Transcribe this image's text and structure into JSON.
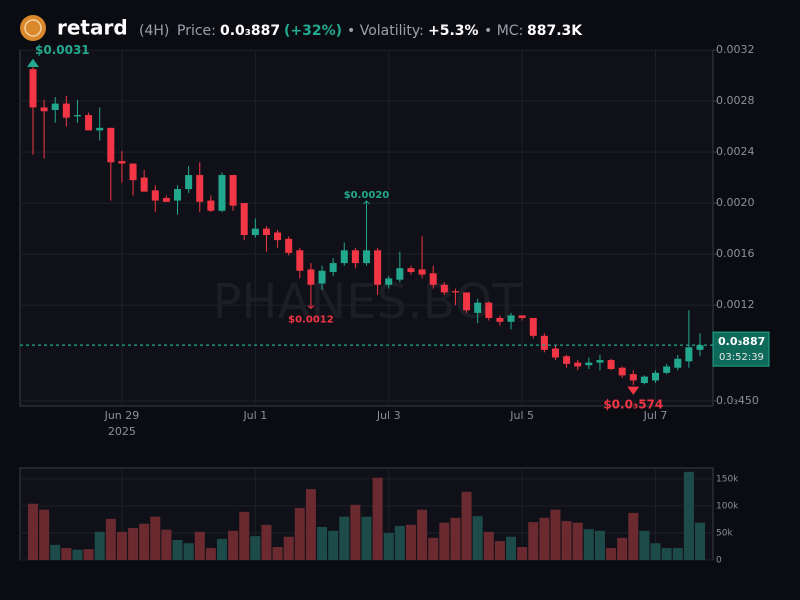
{
  "header": {
    "name": "retard",
    "interval": "(4H)",
    "price_label": "Price:",
    "price": "0.0₃887",
    "change": "(+32%)",
    "volatility_label": "• Volatility:",
    "volatility": "+5.3%",
    "mc_label": "• MC:",
    "mc": "887.3K"
  },
  "chart_data": {
    "type": "candlestick",
    "categories": [
      null,
      null,
      null,
      null,
      null,
      null,
      null,
      null,
      "Jun 29",
      null,
      null,
      null,
      null,
      null,
      null,
      null,
      null,
      null,
      null,
      null,
      "Jul 1",
      null,
      null,
      null,
      null,
      null,
      null,
      null,
      null,
      null,
      null,
      null,
      "Jul 3",
      null,
      null,
      null,
      null,
      null,
      null,
      null,
      null,
      null,
      null,
      null,
      "Jul 5",
      null,
      null,
      null,
      null,
      null,
      null,
      null,
      null,
      null,
      null,
      null,
      "Jul 7",
      null,
      null,
      null,
      null
    ],
    "x_year_label": "2025",
    "open": [
      0.00305,
      0.00275,
      0.00273,
      0.00278,
      0.00268,
      0.00269,
      0.00257,
      0.00259,
      0.00233,
      0.00231,
      0.0022,
      0.0021,
      0.00204,
      0.00202,
      0.00211,
      0.00222,
      0.00202,
      0.00194,
      0.00222,
      0.002,
      0.00175,
      0.0018,
      0.00177,
      0.00172,
      0.00163,
      0.00148,
      0.00137,
      0.00146,
      0.00153,
      0.00163,
      0.00153,
      0.00163,
      0.00136,
      0.0014,
      0.00149,
      0.00148,
      0.00145,
      0.00136,
      0.00131,
      0.0013,
      0.00114,
      0.00122,
      0.0011,
      0.00107,
      0.00112,
      0.0011,
      0.00096,
      0.00086,
      0.0008,
      0.00075,
      0.00073,
      0.00075,
      0.00077,
      0.00071,
      0.00066,
      0.00059,
      0.00061,
      0.00067,
      0.00071,
      0.00076,
      0.00085
    ],
    "high": [
      0.00311,
      0.00281,
      0.00283,
      0.00284,
      0.00281,
      0.00271,
      0.00275,
      0.00259,
      0.00241,
      0.00231,
      0.00226,
      0.00214,
      0.00206,
      0.00214,
      0.00229,
      0.00232,
      0.00206,
      0.00224,
      0.00222,
      0.002,
      0.00188,
      0.00182,
      0.00179,
      0.00174,
      0.00165,
      0.00153,
      0.00151,
      0.00157,
      0.00169,
      0.00165,
      0.00197,
      0.00165,
      0.00143,
      0.00162,
      0.00151,
      0.00174,
      0.00151,
      0.00138,
      0.00133,
      0.0013,
      0.00125,
      0.00123,
      0.00112,
      0.00114,
      0.00112,
      0.0011,
      0.00098,
      0.00089,
      0.00081,
      0.00077,
      0.00079,
      0.00081,
      0.00078,
      0.00072,
      0.00069,
      0.00065,
      0.00069,
      0.00074,
      0.00081,
      0.00116,
      0.00098
    ],
    "low": [
      0.00238,
      0.00235,
      0.00263,
      0.0026,
      0.00263,
      0.00257,
      0.00249,
      0.00202,
      0.00216,
      0.00206,
      0.00209,
      0.00193,
      0.00201,
      0.00191,
      0.00208,
      0.00193,
      0.00193,
      0.00193,
      0.00194,
      0.00171,
      0.00173,
      0.00162,
      0.00165,
      0.00159,
      0.00141,
      0.00119,
      0.00132,
      0.00143,
      0.00151,
      0.00149,
      0.00151,
      0.00128,
      0.00133,
      0.00138,
      0.00144,
      0.00141,
      0.00133,
      0.00128,
      0.0012,
      0.00114,
      0.00106,
      0.00108,
      0.00104,
      0.00101,
      0.00108,
      0.00094,
      0.00083,
      0.00077,
      0.00071,
      0.00069,
      0.0007,
      0.00069,
      0.00069,
      0.00063,
      0.000574,
      0.00058,
      0.00059,
      0.00066,
      0.00069,
      0.00071,
      0.0008
    ],
    "close": [
      0.00275,
      0.00272,
      0.00278,
      0.00267,
      0.00269,
      0.00257,
      0.00259,
      0.00232,
      0.00231,
      0.00218,
      0.00209,
      0.00202,
      0.00201,
      0.00211,
      0.00222,
      0.00201,
      0.00194,
      0.00222,
      0.00198,
      0.00175,
      0.0018,
      0.00175,
      0.00171,
      0.00161,
      0.00147,
      0.00136,
      0.00147,
      0.00153,
      0.00163,
      0.00153,
      0.00163,
      0.00136,
      0.00141,
      0.00149,
      0.00146,
      0.00144,
      0.00136,
      0.0013,
      0.0013,
      0.00116,
      0.00122,
      0.0011,
      0.00107,
      0.00112,
      0.0011,
      0.00096,
      0.00085,
      0.00079,
      0.00074,
      0.00072,
      0.00075,
      0.00077,
      0.0007,
      0.00065,
      0.00061,
      0.00064,
      0.00067,
      0.00072,
      0.00078,
      0.00087,
      0.000887
    ],
    "volume": [
      104000,
      93000,
      28000,
      22000,
      19000,
      20000,
      52000,
      76000,
      52000,
      59000,
      67000,
      80000,
      56000,
      37000,
      31000,
      52000,
      22000,
      39000,
      54000,
      89000,
      44000,
      65000,
      24000,
      43000,
      96000,
      131000,
      61000,
      54000,
      80000,
      102000,
      80000,
      152000,
      50000,
      63000,
      65000,
      93000,
      41000,
      69000,
      78000,
      126000,
      81000,
      52000,
      35000,
      43000,
      24000,
      70000,
      78000,
      93000,
      72000,
      69000,
      57000,
      54000,
      22000,
      41000,
      87000,
      54000,
      31000,
      22000,
      22000,
      163000,
      69000
    ],
    "ylim": [
      0.00041,
      0.0032
    ],
    "yticks": [
      0.0032,
      0.0028,
      0.0024,
      {
        "value": 0.002,
        "label": "0.0020"
      },
      0.0016,
      0.0012,
      {
        "value": 0.00045,
        "label": "0.0₃450"
      }
    ],
    "volume_ylim": [
      0,
      170000
    ],
    "volume_ticks": [
      0,
      {
        "value": 50000,
        "label": "50k"
      },
      {
        "value": 100000,
        "label": "100k"
      },
      {
        "value": 150000,
        "label": "150k"
      }
    ],
    "annotations": [
      {
        "index": 0,
        "kind": "high",
        "label": "$0.0031"
      },
      {
        "index": 30,
        "kind": "high",
        "label": "$0.0020"
      },
      {
        "index": 25,
        "kind": "low",
        "label": "$0.0012"
      },
      {
        "index": 54,
        "kind": "low",
        "label": "$0.0₃574"
      }
    ],
    "last_price_label": "0.0₃887",
    "countdown": "03:52:39",
    "watermark": "PHANES.BOT",
    "up_color": "#22a88e",
    "down_color": "#f23645",
    "volume_up_color": "#1d4b4a",
    "volume_down_color": "#6a2a30",
    "grid": true
  }
}
